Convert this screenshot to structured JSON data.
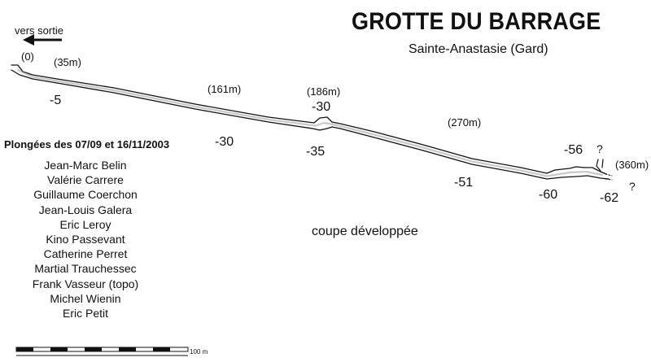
{
  "title": "GROTTE DU BARRAGE",
  "subtitle": "Sainte-Anastasie (Gard)",
  "exit_label": "vers sortie",
  "caption": "coupe développée",
  "dives_heading": "Plongées des 07/09 et 16/11/2003",
  "divers": [
    "Jean-Marc Belin",
    "Valérie Carrere",
    "Guillaume Coerchon",
    "Jean-Louis Galera",
    "Eric Leroy",
    "Kino Passevant",
    "Catherine Perret",
    "Martial Trauchessec",
    "Frank Vasseur (topo)",
    "Michel Wienin",
    "Eric Petit"
  ],
  "distance_labels": [
    "(0)",
    "(35m)",
    "(161m)",
    "(186m)",
    "(270m)",
    "(360m)"
  ],
  "depth_labels": [
    "-5",
    "-30",
    "-30",
    "-35",
    "-51",
    "-56",
    "-60",
    "-62"
  ],
  "unknown_marks": [
    "?",
    "?"
  ],
  "scale_bar": {
    "end_label": "100 m"
  },
  "colors": {
    "ink": "#111111",
    "background": "#ffffff"
  }
}
